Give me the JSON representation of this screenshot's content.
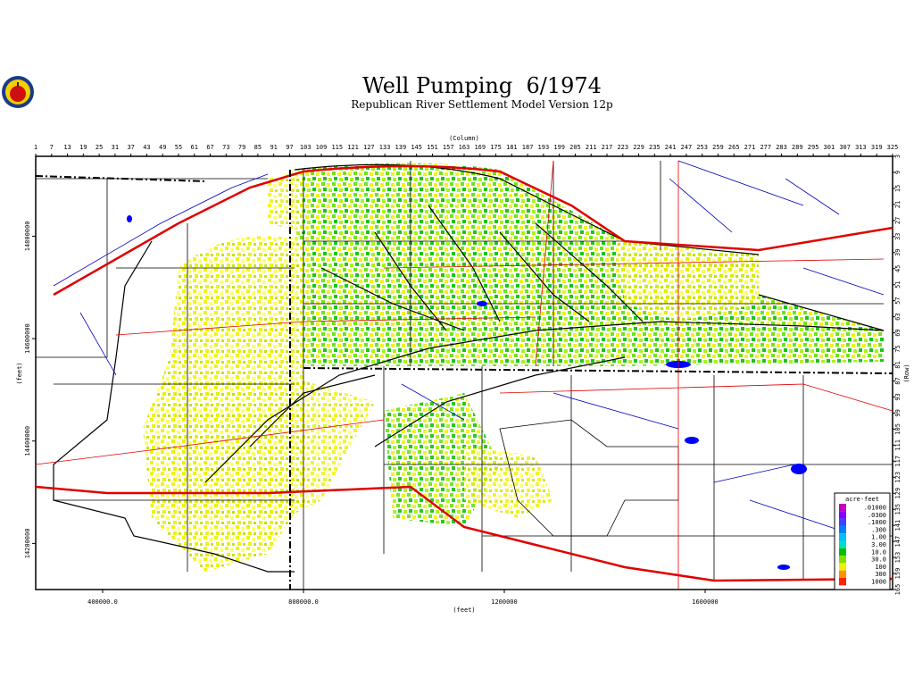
{
  "header": {
    "title": "Well Pumping  6/1974",
    "subtitle": "Republican River Settlement Model Version 12p"
  },
  "axes": {
    "column_label": "(Column)",
    "row_label": "(Row)",
    "x_feet_label": "(feet)",
    "y_feet_label": "(feet)",
    "columns": [
      1,
      7,
      13,
      19,
      25,
      31,
      37,
      43,
      49,
      55,
      61,
      67,
      73,
      79,
      85,
      91,
      97,
      103,
      109,
      115,
      121,
      127,
      133,
      139,
      145,
      151,
      157,
      163,
      169,
      175,
      181,
      187,
      193,
      199,
      205,
      211,
      217,
      223,
      229,
      235,
      241,
      247,
      253,
      259,
      265,
      271,
      277,
      283,
      289,
      295,
      301,
      307,
      313,
      319,
      325
    ],
    "rows": [
      3,
      9,
      15,
      21,
      27,
      33,
      39,
      45,
      51,
      57,
      63,
      69,
      75,
      81,
      87,
      93,
      99,
      105,
      111,
      117,
      123,
      129,
      135,
      141,
      147,
      153,
      159,
      165
    ],
    "xlim": [
      266700,
      1973300
    ],
    "xticks": [
      {
        "value": 400000,
        "label": "400000.0"
      },
      {
        "value": 800000,
        "label": "800000.0"
      },
      1200000,
      1600000
    ],
    "ylim": [
      14110000,
      14956000
    ],
    "yticks": [
      14800000,
      14600000,
      14400000,
      14200000
    ]
  },
  "legend": {
    "title": "acre-feet",
    "entries": [
      {
        "label": ".01000",
        "color": "#c000c0"
      },
      {
        "label": ".0300",
        "color": "#8000ff"
      },
      {
        "label": ".1000",
        "color": "#4040ff"
      },
      {
        "label": ".300",
        "color": "#0080ff"
      },
      {
        "label": "1.00",
        "color": "#00c0ff"
      },
      {
        "label": "3.00",
        "color": "#00e0c0"
      },
      {
        "label": "10.0",
        "color": "#00c000"
      },
      {
        "label": "30.0",
        "color": "#80e000"
      },
      {
        "label": "100",
        "color": "#f0f000"
      },
      {
        "label": "300",
        "color": "#ff9000"
      },
      {
        "label": "1000",
        "color": "#ff2000"
      }
    ]
  }
}
